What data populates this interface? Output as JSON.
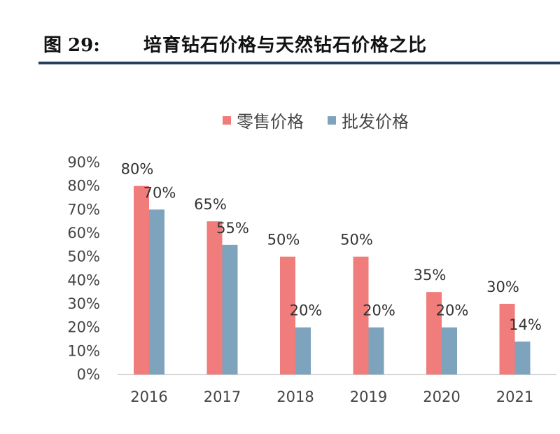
{
  "header": {
    "figure_number": "图 29:",
    "title": "培育钻石价格与天然钻石价格之比"
  },
  "chart_data": {
    "type": "bar",
    "title": "培育钻石价格与天然钻石价格之比",
    "categories": [
      "2016",
      "2017",
      "2018",
      "2019",
      "2020",
      "2021"
    ],
    "series": [
      {
        "name": "零售价格",
        "color": "#f07c7b",
        "values": [
          80,
          65,
          50,
          50,
          35,
          30
        ],
        "labels": [
          "80%",
          "65%",
          "50%",
          "50%",
          "35%",
          "30%"
        ]
      },
      {
        "name": "批发价格",
        "color": "#7ea4bd",
        "values": [
          70,
          55,
          20,
          20,
          20,
          14
        ],
        "labels": [
          "70%",
          "55%",
          "20%",
          "20%",
          "20%",
          "14%"
        ]
      }
    ],
    "ylim": [
      0,
      90
    ],
    "yticks": [
      "0%",
      "10%",
      "20%",
      "30%",
      "40%",
      "50%",
      "60%",
      "70%",
      "80%",
      "90%"
    ],
    "grid": false,
    "legend_position": "top"
  }
}
